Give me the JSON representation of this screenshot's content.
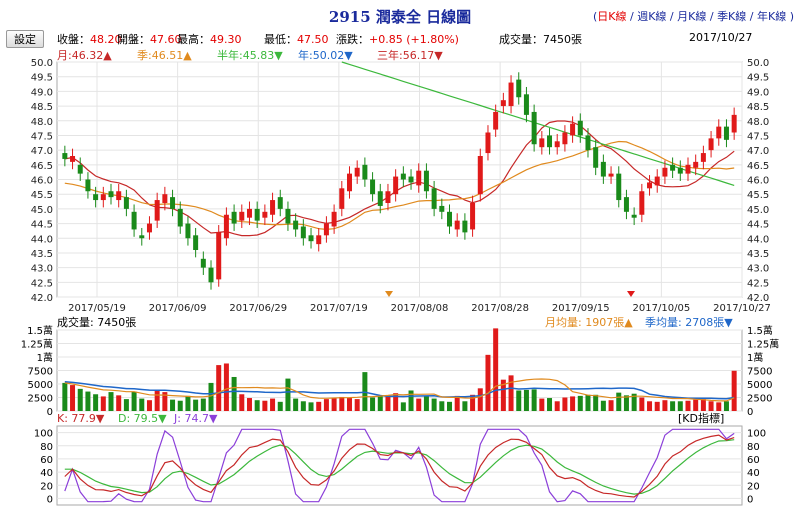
{
  "header": {
    "title": "2915 潤泰全 日線圖",
    "links": [
      "(",
      "日K線",
      " / ",
      "週K線",
      " / ",
      "月K線",
      " / ",
      "季K線",
      " / ",
      "年K線",
      " )"
    ],
    "settings_label": "設定"
  },
  "quote": {
    "close_label": "收盤：",
    "close": "48.20",
    "open_label": "開盤：",
    "open": "47.60",
    "high_label": "最高：",
    "high": "49.30",
    "low_label": "最低：",
    "low": "47.50",
    "change_label": "漲跌：",
    "change": "+0.85 (+1.80%)",
    "volume_label": "成交量：",
    "volume": "7450張",
    "date": "2017/10/27"
  },
  "ma_legend": [
    {
      "label": "月:46.32▲",
      "color": "#c62828"
    },
    {
      "label": "季:46.51▲",
      "color": "#e08a1e"
    },
    {
      "label": "半年:45.83▼",
      "color": "#3cb83c"
    },
    {
      "label": "年:50.02▼",
      "color": "#1f67c9"
    },
    {
      "label": "三年:56.17▼",
      "color": "#c62828"
    }
  ],
  "volume_panel": {
    "label": "成交量: 7450張",
    "ma_month": "月均量: 1907張▲",
    "ma_quarter": "季均量: 2708張▼",
    "ticks": [
      "1.5萬",
      "1.25萬",
      "1萬",
      "7500",
      "5000",
      "2500",
      "0"
    ]
  },
  "kd_panel": {
    "k": "K: 77.9▼",
    "d": "D: 79.5▼",
    "j": "J: 74.7▼",
    "badge": "[KD指標]",
    "ticks": [
      "100",
      "80",
      "60",
      "40",
      "20",
      "0"
    ]
  },
  "colors": {
    "up": "#e01a1a",
    "down": "#1a8a1a",
    "ma_month": "#c62828",
    "ma_quarter": "#e08a1e",
    "ma_half": "#3cb83c",
    "vol_ma_quarter": "#1f67c9",
    "k": "#c62828",
    "d": "#3cb83c",
    "j": "#8b3fd9"
  },
  "chart_data": {
    "type": "candlestick",
    "ylim": [
      42.0,
      50.0
    ],
    "yticks": [
      "50.0",
      "49.5",
      "49.0",
      "48.5",
      "48.0",
      "47.5",
      "47.0",
      "46.5",
      "46.0",
      "45.5",
      "45.0",
      "44.5",
      "44.0",
      "43.5",
      "43.0",
      "42.5",
      "42.0"
    ],
    "date_ticks": [
      "2017/05/19",
      "2017/06/09",
      "2017/06/29",
      "2017/07/19",
      "2017/08/08",
      "2017/08/28",
      "2017/09/15",
      "2017/10/05",
      "2017/10/27"
    ],
    "closes": [
      46.7,
      46.8,
      46.2,
      45.6,
      45.3,
      45.5,
      45.4,
      45.6,
      45.0,
      44.3,
      44.0,
      44.5,
      45.3,
      45.5,
      45.0,
      44.4,
      44.0,
      43.6,
      43.0,
      42.5,
      44.2,
      44.8,
      44.5,
      44.9,
      45.0,
      44.6,
      44.9,
      45.3,
      45.0,
      44.5,
      44.3,
      44.0,
      43.9,
      44.1,
      44.5,
      44.9,
      45.7,
      46.2,
      46.4,
      46.0,
      45.5,
      45.1,
      45.6,
      46.1,
      46.0,
      45.9,
      46.3,
      45.6,
      45.0,
      44.9,
      44.4,
      44.6,
      44.2,
      45.2,
      46.8,
      47.6,
      48.3,
      48.7,
      49.3,
      48.8,
      48.2,
      47.2,
      47.4,
      47.1,
      47.3,
      47.6,
      47.9,
      47.5,
      47.0,
      46.4,
      46.1,
      46.2,
      45.3,
      44.9,
      44.7,
      45.6,
      45.9,
      46.1,
      46.4,
      46.3,
      46.2,
      46.5,
      46.6,
      46.9,
      47.4,
      47.8,
      47.35,
      48.2
    ],
    "opens": [
      46.9,
      46.6,
      46.5,
      46.0,
      45.5,
      45.3,
      45.6,
      45.3,
      45.4,
      44.9,
      44.1,
      44.2,
      44.6,
      45.2,
      45.4,
      45.0,
      44.5,
      44.1,
      43.3,
      43.0,
      42.6,
      44.0,
      44.9,
      44.6,
      44.7,
      45.0,
      44.7,
      44.8,
      45.4,
      45.0,
      44.6,
      44.4,
      44.1,
      43.8,
      44.1,
      44.4,
      45.0,
      45.6,
      46.1,
      46.5,
      46.0,
      45.6,
      45.2,
      45.5,
      46.2,
      46.1,
      45.8,
      46.3,
      45.7,
      45.1,
      44.9,
      44.3,
      44.6,
      44.3,
      45.5,
      46.9,
      47.7,
      48.5,
      48.5,
      49.4,
      48.9,
      48.3,
      47.1,
      47.5,
      47.1,
      47.2,
      47.5,
      48.0,
      47.5,
      47.1,
      46.6,
      46.1,
      46.2,
      45.4,
      44.8,
      44.8,
      45.7,
      45.8,
      46.1,
      46.5,
      46.4,
      46.2,
      46.4,
      46.6,
      47.0,
      47.4,
      47.8,
      47.6
    ],
    "volume": [
      5200,
      4800,
      4100,
      3600,
      3100,
      2700,
      3500,
      2900,
      2200,
      3600,
      2300,
      2000,
      3700,
      3500,
      2100,
      1900,
      2800,
      2100,
      2300,
      5200,
      8500,
      8800,
      6300,
      3100,
      2400,
      2000,
      1900,
      2300,
      1700,
      6000,
      2300,
      1800,
      1600,
      1700,
      2200,
      2500,
      2600,
      2400,
      2200,
      7200,
      2500,
      2700,
      2900,
      3300,
      1600,
      3800,
      2300,
      2700,
      2300,
      1800,
      1700,
      2800,
      1800,
      3000,
      4200,
      10400,
      15300,
      5800,
      6600,
      3800,
      3900,
      4000,
      2300,
      2400,
      1800,
      2500,
      2700,
      2800,
      3000,
      3000,
      1900,
      2000,
      3400,
      2900,
      3200,
      2500,
      1800,
      1700,
      2000,
      1800,
      1800,
      1900,
      2100,
      2200,
      1800,
      1600,
      1800,
      7450
    ],
    "vol_ylim": [
      0,
      15000
    ],
    "kd_ylim": [
      -10,
      110
    ]
  }
}
